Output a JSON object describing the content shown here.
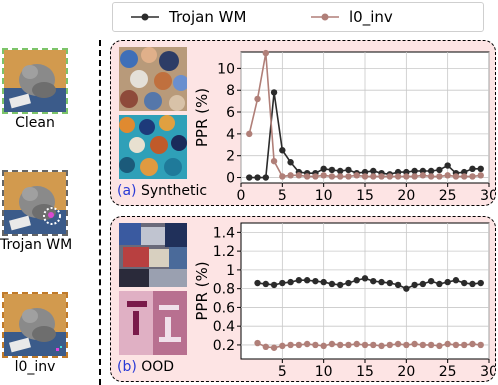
{
  "legend": {
    "items": [
      {
        "label": "Trojan WM",
        "color": "#2b2b2b"
      },
      {
        "label": "l0_inv",
        "color": "#b07f78"
      }
    ]
  },
  "thumbnails": [
    {
      "label": "Clean",
      "border_color": "#7cc46a"
    },
    {
      "label": "Trojan WM",
      "border_color": "#666666"
    },
    {
      "label": "l0_inv",
      "border_color": "#c07a2a"
    }
  ],
  "panels": [
    {
      "tag": "(a)",
      "label": "Synthetic"
    },
    {
      "tag": "(b)",
      "label": "OOD"
    }
  ],
  "chart_data": [
    {
      "type": "line",
      "ylabel": "PPR (%)",
      "xlim": [
        0,
        30
      ],
      "ylim": [
        -0.5,
        11.5
      ],
      "xticks": [
        0,
        5,
        10,
        15,
        20,
        25,
        30
      ],
      "yticks": [
        0,
        2,
        4,
        6,
        8,
        10
      ],
      "grid": true,
      "x": [
        1,
        2,
        3,
        4,
        5,
        6,
        7,
        8,
        9,
        10,
        11,
        12,
        13,
        14,
        15,
        16,
        17,
        18,
        19,
        20,
        21,
        22,
        23,
        24,
        25,
        26,
        27,
        28,
        29
      ],
      "series": [
        {
          "name": "Trojan WM",
          "color": "#2b2b2b",
          "values": [
            0,
            0,
            0,
            7.8,
            2.5,
            1.4,
            0.5,
            0.4,
            0.4,
            0.8,
            0.7,
            0.6,
            0.7,
            0.4,
            0.5,
            0.6,
            0.4,
            0.3,
            0.5,
            0.5,
            0.6,
            0.6,
            0.6,
            0.7,
            1.1,
            0.4,
            0.5,
            0.8,
            0.8
          ]
        },
        {
          "name": "l0_inv",
          "color": "#b07f78",
          "values": [
            4.0,
            7.2,
            11.4,
            1.5,
            0.1,
            0.2,
            0.2,
            0.1,
            0.1,
            0.2,
            0.1,
            0.1,
            0.1,
            0.2,
            0.1,
            0.1,
            0.1,
            0.1,
            0.1,
            0.1,
            0.1,
            0.2,
            0.1,
            0.1,
            0.2,
            0.1,
            0.1,
            0.1,
            0.2
          ]
        }
      ]
    },
    {
      "type": "line",
      "ylabel": "PPR (%)",
      "xlim": [
        0,
        30
      ],
      "ylim": [
        0.05,
        1.5
      ],
      "xticks": [
        5,
        10,
        15,
        20,
        25,
        30
      ],
      "yticks": [
        0.2,
        0.4,
        0.6,
        0.8,
        1.0,
        1.2,
        1.4
      ],
      "grid": true,
      "x": [
        2,
        3,
        4,
        5,
        6,
        7,
        8,
        9,
        10,
        11,
        12,
        13,
        14,
        15,
        16,
        17,
        18,
        19,
        20,
        21,
        22,
        23,
        24,
        25,
        26,
        27,
        28,
        29
      ],
      "series": [
        {
          "name": "Trojan WM",
          "color": "#2b2b2b",
          "values": [
            0.86,
            0.85,
            0.84,
            0.86,
            0.87,
            0.89,
            0.89,
            0.88,
            0.87,
            0.85,
            0.84,
            0.86,
            0.89,
            0.91,
            0.88,
            0.87,
            0.86,
            0.84,
            0.8,
            0.84,
            0.85,
            0.88,
            0.85,
            0.87,
            0.89,
            0.86,
            0.85,
            0.86
          ]
        },
        {
          "name": "l0_inv",
          "color": "#b07f78",
          "values": [
            0.22,
            0.18,
            0.17,
            0.19,
            0.2,
            0.2,
            0.21,
            0.2,
            0.19,
            0.21,
            0.2,
            0.2,
            0.21,
            0.2,
            0.2,
            0.19,
            0.2,
            0.21,
            0.2,
            0.21,
            0.2,
            0.2,
            0.19,
            0.21,
            0.2,
            0.2,
            0.21,
            0.2
          ]
        }
      ]
    }
  ]
}
